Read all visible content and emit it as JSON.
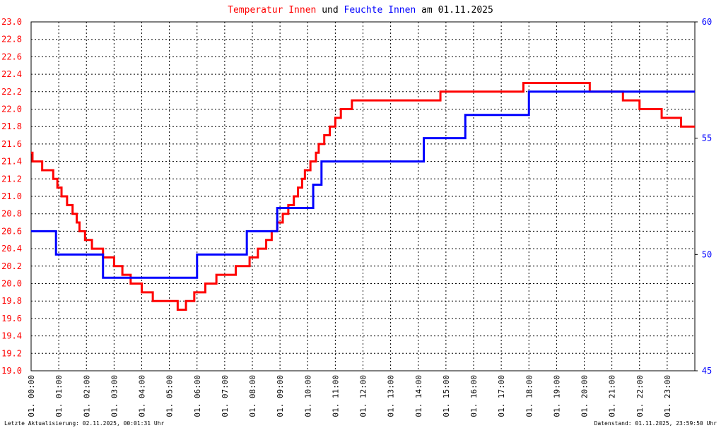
{
  "chart_data": {
    "type": "step",
    "title_text": [
      "und",
      "am 01.11.2025"
    ],
    "footer_left": "Letzte Aktualisierung: 02.11.2025, 00:01:31 Uhr",
    "footer_right": "Datenstand: 01.11.2025, 23:59:50 Uhr",
    "grid": true,
    "xlim": [
      0,
      24
    ],
    "xticks": [
      {
        "value": 0,
        "label": "01. 00:00"
      },
      {
        "value": 1,
        "label": "01. 01:00"
      },
      {
        "value": 2,
        "label": "01. 02:00"
      },
      {
        "value": 3,
        "label": "01. 03:00"
      },
      {
        "value": 4,
        "label": "01. 04:00"
      },
      {
        "value": 5,
        "label": "01. 05:00"
      },
      {
        "value": 6,
        "label": "01. 06:00"
      },
      {
        "value": 7,
        "label": "01. 07:00"
      },
      {
        "value": 8,
        "label": "01. 08:00"
      },
      {
        "value": 9,
        "label": "01. 09:00"
      },
      {
        "value": 10,
        "label": "01. 10:00"
      },
      {
        "value": 11,
        "label": "01. 11:00"
      },
      {
        "value": 12,
        "label": "01. 12:00"
      },
      {
        "value": 13,
        "label": "01. 13:00"
      },
      {
        "value": 14,
        "label": "01. 14:00"
      },
      {
        "value": 15,
        "label": "01. 15:00"
      },
      {
        "value": 16,
        "label": "01. 16:00"
      },
      {
        "value": 17,
        "label": "01. 17:00"
      },
      {
        "value": 18,
        "label": "01. 18:00"
      },
      {
        "value": 19,
        "label": "01. 19:00"
      },
      {
        "value": 20,
        "label": "01. 20:00"
      },
      {
        "value": 21,
        "label": "01. 21:00"
      },
      {
        "value": 22,
        "label": "01. 22:00"
      },
      {
        "value": 23,
        "label": "01. 23:00"
      }
    ],
    "ylim": [
      19,
      23
    ],
    "yticks": [
      {
        "value": 19,
        "label": "19.0"
      },
      19.2,
      19.4,
      19.6,
      19.8,
      {
        "value": 20,
        "label": "20.0"
      },
      20.2,
      20.4,
      20.6,
      20.8,
      {
        "value": 21,
        "label": "21.0"
      },
      21.2,
      21.4,
      21.6,
      21.8,
      {
        "value": 22,
        "label": "22.0"
      },
      22.2,
      22.4,
      22.6,
      22.8,
      {
        "value": 23,
        "label": "23.0"
      }
    ],
    "y2lim": [
      45,
      60
    ],
    "y2ticks": [
      45,
      50,
      55,
      60
    ],
    "series": [
      {
        "name": "Temperatur Innen",
        "color": "#ff0000",
        "x": [
          0,
          0.05,
          0.4,
          0.8,
          0.95,
          1.1,
          1.3,
          1.5,
          1.65,
          1.75,
          1.95,
          2.2,
          2.6,
          3.0,
          3.3,
          3.6,
          4.0,
          4.4,
          5.3,
          5.6,
          5.9,
          6.3,
          6.7,
          7.4,
          7.9,
          8.2,
          8.5,
          8.7,
          8.9,
          9.1,
          9.3,
          9.5,
          9.65,
          9.8,
          9.9,
          10.1,
          10.3,
          10.4,
          10.6,
          10.8,
          11.0,
          11.2,
          11.6,
          14.8,
          17.8,
          20.2,
          21.4,
          22.0,
          22.8,
          23.5,
          24
        ],
        "values": [
          21.5,
          21.4,
          21.3,
          21.2,
          21.1,
          21.0,
          20.9,
          20.8,
          20.7,
          20.6,
          20.5,
          20.4,
          20.3,
          20.2,
          20.1,
          20.0,
          19.9,
          19.8,
          19.7,
          19.8,
          19.9,
          20.0,
          20.1,
          20.2,
          20.3,
          20.4,
          20.5,
          20.6,
          20.7,
          20.8,
          20.9,
          21.0,
          21.1,
          21.2,
          21.3,
          21.4,
          21.5,
          21.6,
          21.7,
          21.8,
          21.9,
          22.0,
          22.1,
          22.2,
          22.3,
          22.2,
          22.1,
          22.0,
          21.9,
          21.8,
          21.8
        ]
      },
      {
        "name": "Feuchte Innen",
        "color": "#0000ff",
        "axis": "y2",
        "x": [
          0,
          0.9,
          2.6,
          6.0,
          7.8,
          8.9,
          10.2,
          10.5,
          14.2,
          15.7,
          18.0,
          24
        ],
        "values": [
          51,
          50,
          49,
          50,
          51,
          52,
          53,
          54,
          55,
          56,
          57,
          57
        ]
      }
    ]
  }
}
